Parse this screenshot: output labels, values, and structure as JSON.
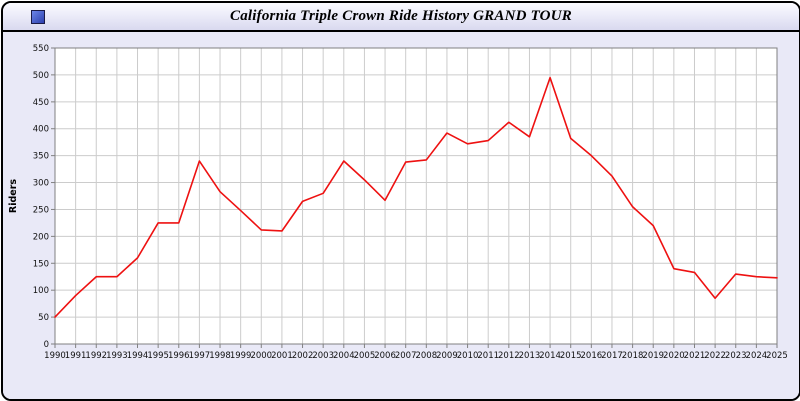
{
  "window": {
    "title": "California Triple Crown Ride History GRAND TOUR"
  },
  "chart_data": {
    "type": "line",
    "title": "California Triple Crown Ride History GRAND TOUR",
    "xlabel": "",
    "ylabel": "Riders",
    "categories": [
      "1990",
      "1991",
      "1992",
      "1993",
      "1994",
      "1995",
      "1996",
      "1997",
      "1998",
      "1999",
      "2000",
      "2001",
      "2002",
      "2003",
      "2004",
      "2005",
      "2006",
      "2007",
      "2008",
      "2009",
      "2010",
      "2011",
      "2012",
      "2013",
      "2014",
      "2015",
      "2016",
      "2017",
      "2018",
      "2019",
      "2020",
      "2021",
      "2022",
      "2023",
      "2024",
      "2025"
    ],
    "values": [
      50,
      90,
      125,
      125,
      160,
      225,
      225,
      340,
      283,
      248,
      212,
      210,
      265,
      280,
      340,
      305,
      267,
      338,
      342,
      392,
      372,
      378,
      412,
      385,
      495,
      382,
      350,
      312,
      255,
      220,
      140,
      133,
      85,
      130,
      125,
      123
    ],
    "ylim": [
      0,
      550
    ],
    "ytick_step": 50,
    "grid": true,
    "legend": "none",
    "line_color": "#ee1111",
    "grid_color": "#cccccc",
    "axis_color": "#808080",
    "plot_bg": "#ffffff",
    "panel_bg": "#e9e9f7",
    "tick_text_color": "#111111"
  }
}
